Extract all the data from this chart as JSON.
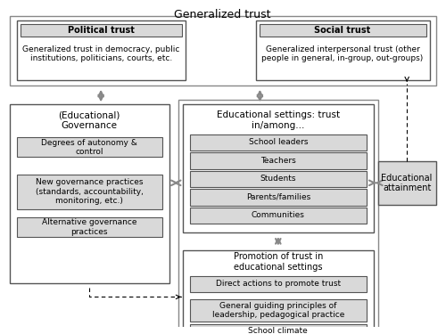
{
  "title": "Generalized trust",
  "bg_color": "#ffffff",
  "box_fill_light": "#d9d9d9",
  "box_fill_white": "#ffffff",
  "box_border": "#555555",
  "political_trust": {
    "header": "Political trust",
    "body": "Generalized trust in democracy, public\ninstitutions, politicians, courts, etc."
  },
  "social_trust": {
    "header": "Social trust",
    "body": "Generalized interpersonal trust (other\npeople in general, in-group, out-groups)"
  },
  "governance": {
    "title": "(Educational)\nGovernance",
    "items": [
      "Degrees of autonomy &\ncontrol",
      "New governance practices\n(standards, accountability,\nmonitoring, etc.)",
      "Alternative governance\npractices"
    ]
  },
  "educational_settings": {
    "title": "Educational settings: trust\nin/among...",
    "items": [
      "School leaders",
      "Teachers",
      "Students",
      "Parents/families",
      "Communities"
    ]
  },
  "promotion": {
    "title": "Promotion of trust in\neducational settings",
    "items": [
      "Direct actions to promote trust",
      "General guiding principles of\nleadership, pedagogical practice",
      "School climate"
    ]
  },
  "attainment": {
    "text": "Educational\nattainment"
  }
}
